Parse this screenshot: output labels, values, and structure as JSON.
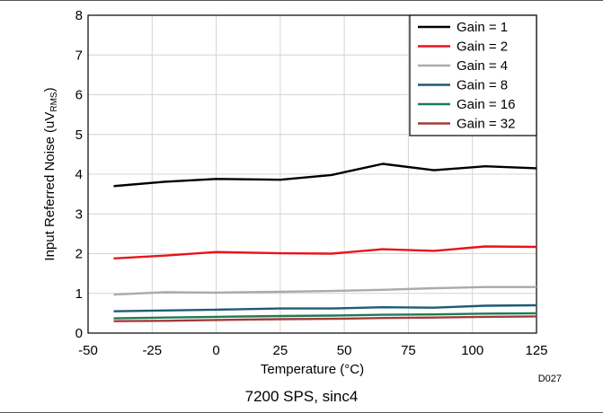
{
  "chart_data": {
    "type": "line",
    "xlabel": "Temperature (°C)",
    "ylabel_main": "Input Referred Noise (uV",
    "ylabel_sub": "RMS",
    "ylabel_close": ")",
    "xlim": [
      -50,
      125
    ],
    "ylim": [
      0,
      8
    ],
    "xticks": [
      -50,
      -25,
      0,
      25,
      50,
      75,
      100,
      125
    ],
    "yticks": [
      0,
      1,
      2,
      3,
      4,
      5,
      6,
      7,
      8
    ],
    "grid": true,
    "legend_position": "top-right",
    "x": [
      -40,
      -20,
      0,
      25,
      45,
      65,
      85,
      105,
      125
    ],
    "series": [
      {
        "name": "Gain = 1",
        "color": "#000000",
        "values": [
          3.7,
          3.81,
          3.88,
          3.86,
          3.98,
          4.26,
          4.1,
          4.2,
          4.15
        ]
      },
      {
        "name": "Gain = 2",
        "color": "#e8141b",
        "values": [
          1.88,
          1.95,
          2.04,
          2.01,
          2.0,
          2.11,
          2.07,
          2.18,
          2.17
        ]
      },
      {
        "name": "Gain = 4",
        "color": "#aaaaaa",
        "values": [
          0.97,
          1.03,
          1.02,
          1.04,
          1.06,
          1.09,
          1.13,
          1.16,
          1.16
        ]
      },
      {
        "name": "Gain = 8",
        "color": "#1d5b78",
        "values": [
          0.55,
          0.57,
          0.59,
          0.62,
          0.62,
          0.65,
          0.64,
          0.69,
          0.7
        ]
      },
      {
        "name": "Gain = 16",
        "color": "#1f7a52",
        "values": [
          0.37,
          0.39,
          0.41,
          0.43,
          0.44,
          0.46,
          0.47,
          0.49,
          0.5
        ]
      },
      {
        "name": "Gain = 32",
        "color": "#a23b3b",
        "values": [
          0.3,
          0.31,
          0.33,
          0.35,
          0.36,
          0.38,
          0.39,
          0.41,
          0.42
        ]
      }
    ]
  },
  "figure_id": "D027",
  "caption": "7200 SPS, sinc4"
}
